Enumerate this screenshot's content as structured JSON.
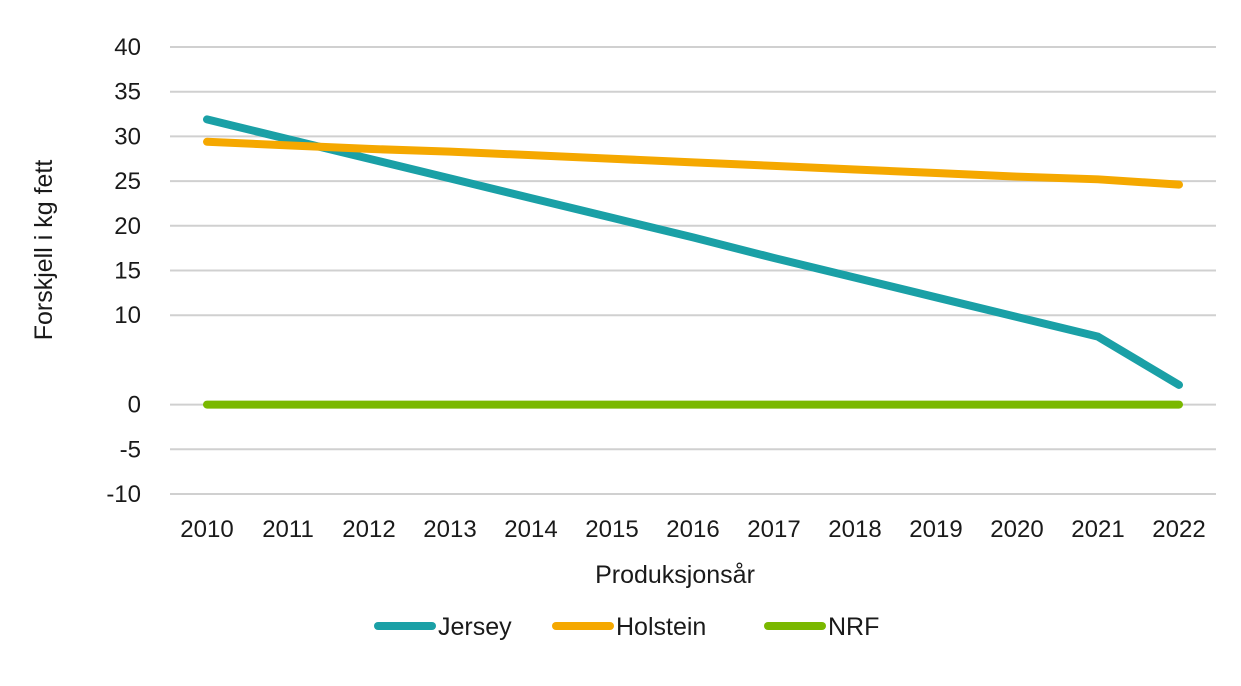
{
  "chart_data": {
    "type": "line",
    "title": "",
    "xlabel": "Produksjonsår",
    "ylabel": "Forskjell i kg fett",
    "x": [
      "2010",
      "2011",
      "2012",
      "2013",
      "2014",
      "2015",
      "2016",
      "2017",
      "2018",
      "2019",
      "2020",
      "2021",
      "2022"
    ],
    "ylim": [
      -10,
      40
    ],
    "yticks": [
      40,
      35,
      30,
      25,
      20,
      15,
      10,
      0,
      -5,
      -10
    ],
    "grid": true,
    "legend_position": "bottom",
    "series": [
      {
        "name": "Jersey",
        "color": "#1aa0a6",
        "values": [
          31.9,
          29.7,
          27.5,
          25.3,
          23.1,
          20.9,
          18.7,
          16.4,
          14.2,
          12.0,
          9.8,
          7.6,
          2.2
        ]
      },
      {
        "name": "Holstein",
        "color": "#f5a800",
        "values": [
          29.4,
          29.0,
          28.6,
          28.3,
          27.9,
          27.5,
          27.1,
          26.7,
          26.3,
          25.9,
          25.5,
          25.2,
          24.6
        ]
      },
      {
        "name": "NRF",
        "color": "#7ab800",
        "values": [
          0,
          0,
          0,
          0,
          0,
          0,
          0,
          0,
          0,
          0,
          0,
          0,
          0
        ]
      }
    ]
  }
}
